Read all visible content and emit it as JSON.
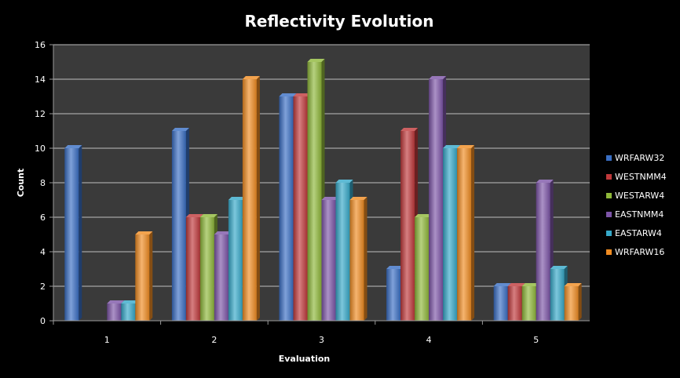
{
  "chart_data": {
    "type": "bar",
    "title": "Reflectivity Evolution",
    "xlabel": "Evaluation",
    "ylabel": "Count",
    "categories": [
      "1",
      "2",
      "3",
      "4",
      "5"
    ],
    "ylim": [
      0,
      16
    ],
    "yticks": [
      0,
      2,
      4,
      6,
      8,
      10,
      12,
      14,
      16
    ],
    "grid": true,
    "legend_position": "right",
    "plot_background": "#3a3a3a",
    "series": [
      {
        "name": "WRFARW32",
        "color": "#3a6fc4",
        "values": [
          10,
          11,
          13,
          3,
          2
        ]
      },
      {
        "name": "WESTNMM4",
        "color": "#c0393b",
        "values": [
          0,
          6,
          13,
          11,
          2
        ]
      },
      {
        "name": "WESTARW4",
        "color": "#8fb83a",
        "values": [
          0,
          6,
          15,
          6,
          2
        ]
      },
      {
        "name": "EASTNMM4",
        "color": "#7d55a8",
        "values": [
          1,
          5,
          7,
          14,
          8
        ]
      },
      {
        "name": "EASTARW4",
        "color": "#36a9c9",
        "values": [
          1,
          7,
          8,
          10,
          3
        ]
      },
      {
        "name": "WRFARW16",
        "color": "#f08c22",
        "values": [
          5,
          14,
          7,
          10,
          2
        ]
      }
    ]
  }
}
